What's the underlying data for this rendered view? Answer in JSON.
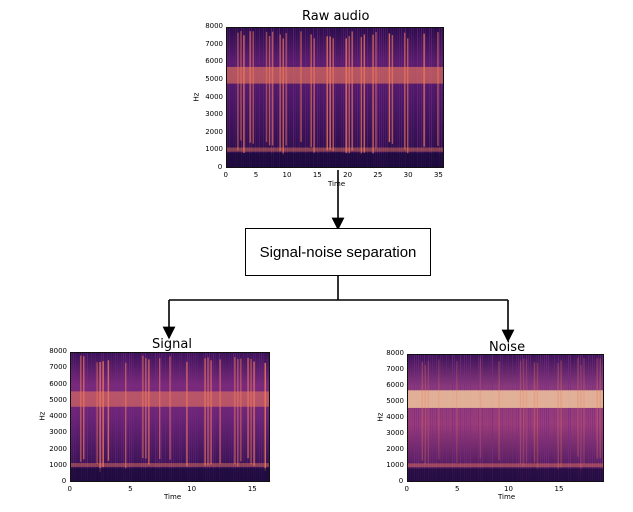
{
  "diagram": {
    "process": {
      "label": "Signal-noise separation"
    },
    "panels": [
      {
        "id": "raw",
        "title": "Raw audio",
        "xlabel": "Time",
        "ylabel": "Hz",
        "xticks": [
          "0",
          "5",
          "10",
          "15",
          "20",
          "25",
          "30",
          "35"
        ],
        "yticks": [
          "0",
          "1000",
          "2000",
          "3000",
          "4000",
          "5000",
          "6000",
          "7000",
          "8000"
        ],
        "xlim": [
          0,
          36
        ],
        "ylim": [
          0,
          8000
        ]
      },
      {
        "id": "signal",
        "title": "Signal",
        "xlabel": "Time",
        "ylabel": "Hz",
        "xticks": [
          "0",
          "5",
          "10",
          "15"
        ],
        "yticks": [
          "0",
          "1000",
          "2000",
          "3000",
          "4000",
          "5000",
          "6000",
          "7000",
          "8000"
        ],
        "xlim": [
          0,
          16.5
        ],
        "ylim": [
          0,
          8000
        ]
      },
      {
        "id": "noise",
        "title": "Noise",
        "xlabel": "Time",
        "ylabel": "Hz",
        "xticks": [
          "0",
          "5",
          "10",
          "15"
        ],
        "yticks": [
          "0",
          "1000",
          "2000",
          "3000",
          "4000",
          "5000",
          "6000",
          "7000",
          "8000"
        ],
        "xlim": [
          0,
          19.5
        ],
        "ylim": [
          0,
          8000
        ]
      }
    ],
    "colors": {
      "spec_dark": "#1a0a3a",
      "spec_mid": "#7a2a8a",
      "spec_bright": "#f07a5a",
      "spec_hot": "#fdd8a0"
    }
  }
}
